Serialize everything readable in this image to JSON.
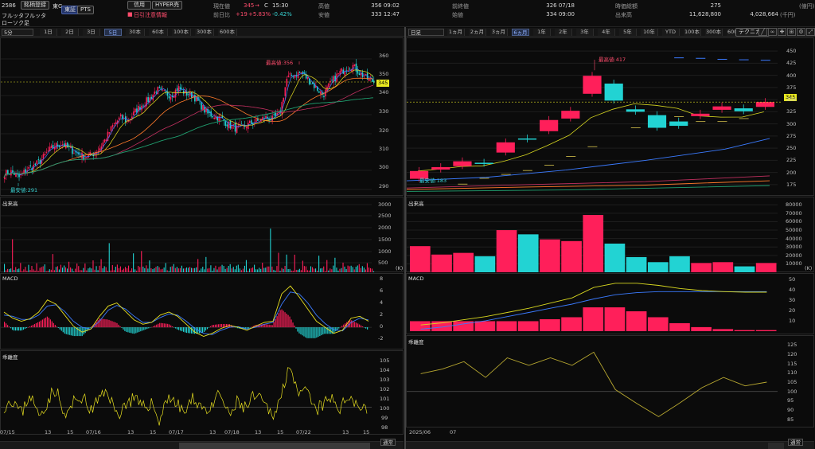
{
  "header": {
    "code": "2586",
    "name": "フルッタフルッタ",
    "btn_register": "銘柄登録",
    "market": "東G",
    "btn_tse": "東証",
    "btn_pts": "PTS",
    "btn_credit": "信用",
    "btn_hyper": "HYPER売",
    "warning": "日引注意情報",
    "current_label": "現在値",
    "current_value": "345",
    "current_arrow": "→",
    "current_mark": "C",
    "current_time": "15:30",
    "prev_label": "前日比",
    "prev_change": "+19",
    "prev_pct": "+5.83%",
    "prev_extra": "-0.42%",
    "high_label": "高値",
    "high_value": "356 09:02",
    "low_label": "安値",
    "low_value": "333 12:47",
    "prevclose_label": "前終値",
    "prevclose_value": "326 07/18",
    "open_label": "始値",
    "open_value": "334 09:00",
    "vwap_label": "時価総額",
    "vwap_value": "275",
    "vwap_unit": "(億円)",
    "volume_label": "出来高",
    "volume_value": "11,628,800",
    "turnover_value": "4,028,664",
    "turnover_unit": "(千円)"
  },
  "left": {
    "style_select": "ローソク足",
    "interval_select": "5分",
    "tabs": [
      "1日",
      "2日",
      "3日",
      "5日",
      "30本",
      "60本",
      "100本",
      "300本",
      "600本"
    ],
    "active_tab": "5日",
    "price_label": "345",
    "high_annot": "最高値:356",
    "low_annot": "最安値:291",
    "y_ticks": [
      "360",
      "350",
      "340",
      "330",
      "320",
      "310",
      "300",
      "290"
    ],
    "vol_label": "出来高",
    "vol_ticks": [
      "3000",
      "2500",
      "2000",
      "1500",
      "1000",
      "500"
    ],
    "vol_unit": "(K)",
    "macd_label": "MACD",
    "macd_ticks": [
      "8",
      "6",
      "4",
      "2",
      "0",
      "-2"
    ],
    "dev_label": "乖離度",
    "dev_ticks": [
      "105",
      "104",
      "103",
      "102",
      "101",
      "100",
      "99",
      "98"
    ],
    "x_ticks": [
      "07/15",
      "13",
      "15",
      "07/16",
      "13",
      "15",
      "07/17",
      "13",
      "07/18",
      "13",
      "15",
      "07/22",
      "13",
      "15"
    ],
    "bottom_select": "通常"
  },
  "right": {
    "interval_select": "日足",
    "tabs": [
      "1ヵ月",
      "2ヵ月",
      "3ヵ月",
      "6ヵ月",
      "1年",
      "2年",
      "3年",
      "4年",
      "5年",
      "10年",
      "YTD",
      "100本",
      "300本",
      "600本"
    ],
    "active_tab": "6ヵ月",
    "tech_button": "テクニカル",
    "price_label": "345",
    "high_annot": "最高値:417",
    "low_annot": "最安値:183",
    "y_ticks": [
      "450",
      "425",
      "400",
      "375",
      "350",
      "325",
      "300",
      "275",
      "250",
      "225",
      "200",
      "175"
    ],
    "vol_label": "出来高",
    "vol_ticks": [
      "80000",
      "70000",
      "60000",
      "50000",
      "40000",
      "30000",
      "20000",
      "10000"
    ],
    "vol_unit": "(K)",
    "macd_label": "MACD",
    "macd_ticks": [
      "50",
      "40",
      "30",
      "20",
      "10"
    ],
    "dev_label": "乖離度",
    "dev_ticks": [
      "125",
      "120",
      "115",
      "110",
      "105",
      "100",
      "95",
      "90",
      "85"
    ],
    "x_ticks": [
      "2025/06",
      "07"
    ],
    "bottom_select": "通常"
  },
  "colors": {
    "up": "#ff1f5a",
    "down": "#22d3d3",
    "bg": "#0b0b0b"
  },
  "chart_data": [
    {
      "type": "candlestick",
      "title": "5分",
      "ylim": [
        285,
        365
      ],
      "high": 356,
      "low": 291,
      "last": 345,
      "close_path": [
        296,
        297,
        294,
        298,
        300,
        303,
        308,
        311,
        312,
        309,
        307,
        305,
        306,
        309,
        315,
        322,
        326,
        324,
        329,
        333,
        336,
        341,
        339,
        338,
        342,
        339,
        338,
        333,
        328,
        327,
        325,
        322,
        320,
        321,
        323,
        324,
        326,
        325,
        328,
        347,
        349,
        350,
        346,
        342,
        338,
        344,
        349,
        352,
        354,
        350,
        347,
        345
      ]
    },
    {
      "type": "bar",
      "title": "出来高",
      "ylim": [
        0,
        3100
      ],
      "values": [
        600,
        1600,
        450,
        300,
        500,
        400,
        900,
        300,
        700,
        500,
        450,
        600,
        300,
        700,
        1200,
        400,
        300,
        800,
        1100,
        600,
        350,
        600,
        400,
        300,
        500,
        350,
        900,
        700,
        300,
        400,
        350,
        300,
        600,
        300,
        400,
        2000,
        800,
        500,
        900,
        1100,
        600,
        400,
        700,
        500,
        600,
        400,
        300,
        500,
        450,
        350
      ]
    },
    {
      "type": "line",
      "title": "MACD",
      "ylim": [
        -3,
        8
      ],
      "series": [
        {
          "name": "MACD",
          "values": [
            2.5,
            1.5,
            1.0,
            1.4,
            2.5,
            4.5,
            3.8,
            2.0,
            0.2,
            -0.8,
            -0.3,
            1.8,
            3.5,
            4.0,
            2.6,
            1.2,
            0.5,
            0.8,
            2.0,
            2.5,
            1.8,
            0.5,
            -0.8,
            -1.5,
            -1.0,
            -0.2,
            0.3,
            0.0,
            -0.5,
            0.2,
            0.8,
            1.0,
            5.5,
            6.8,
            5.0,
            3.0,
            1.0,
            0.0,
            -1.0,
            -0.5,
            1.5,
            1.8,
            1.0
          ]
        },
        {
          "name": "Signal",
          "values": [
            2.0,
            1.8,
            1.3,
            1.3,
            2.0,
            3.5,
            3.7,
            2.6,
            1.0,
            0.0,
            -0.3,
            1.0,
            2.8,
            3.6,
            3.0,
            1.8,
            0.8,
            0.8,
            1.6,
            2.2,
            2.0,
            1.0,
            -0.2,
            -1.0,
            -1.2,
            -0.5,
            0.0,
            0.1,
            -0.3,
            0.0,
            0.5,
            0.8,
            3.8,
            5.8,
            5.5,
            4.0,
            2.0,
            0.6,
            -0.4,
            -0.6,
            0.8,
            1.5,
            1.2
          ]
        }
      ]
    },
    {
      "type": "line",
      "title": "乖離度",
      "ylim": [
        97.5,
        105.5
      ],
      "series": [
        {
          "name": "乖離度",
          "values": [
            100.2,
            100.9,
            99.3,
            101.5,
            99.0,
            100.6,
            102.1,
            98.8,
            100.4,
            101.2,
            99.6,
            100.8,
            101.9,
            99.1,
            100.3,
            101.0,
            99.8,
            100.6,
            98.5,
            101.4,
            100.2,
            99.5,
            101.0,
            100.0,
            99.7,
            101.6,
            98.9,
            100.5,
            99.9,
            101.2,
            100.4,
            99.2,
            100.8,
            105.0,
            100.9,
            101.8,
            99.6,
            100.3,
            100.9,
            99.8,
            101.5,
            100.1,
            100.0
          ]
        }
      ]
    },
    {
      "type": "candlestick",
      "title": "日足",
      "ylim": [
        165,
        460
      ],
      "high": 417,
      "low": 183,
      "candles": [
        {
          "o": 187,
          "c": 203
        },
        {
          "o": 206,
          "c": 211
        },
        {
          "o": 213,
          "c": 223
        },
        {
          "o": 220,
          "c": 218
        },
        {
          "o": 241,
          "c": 262
        },
        {
          "o": 270,
          "c": 268
        },
        {
          "o": 285,
          "c": 308
        },
        {
          "o": 311,
          "c": 327
        },
        {
          "o": 362,
          "c": 399
        },
        {
          "o": 383,
          "c": 348
        },
        {
          "o": 330,
          "c": 325
        },
        {
          "o": 318,
          "c": 292
        },
        {
          "o": 305,
          "c": 296
        },
        {
          "o": 316,
          "c": 321
        },
        {
          "o": 329,
          "c": 336
        },
        {
          "o": 332,
          "c": 326
        },
        {
          "o": 335,
          "c": 345
        }
      ]
    },
    {
      "type": "bar",
      "title": "出来高",
      "ylim": [
        0,
        85000
      ],
      "values": [
        31000,
        21000,
        23000,
        19000,
        50000,
        45000,
        39000,
        37000,
        68000,
        34000,
        18000,
        12000,
        19000,
        11000,
        12000,
        7000,
        11000
      ]
    },
    {
      "type": "line",
      "title": "MACD",
      "ylim": [
        0,
        52
      ],
      "series": [
        {
          "name": "MACD",
          "values": [
            6,
            8,
            11,
            14,
            18,
            22,
            27,
            32,
            42,
            46,
            46,
            44,
            41,
            39,
            38,
            37.5,
            37.5
          ]
        },
        {
          "name": "Signal",
          "values": [
            2,
            4,
            7,
            10,
            14,
            18,
            22,
            26,
            31,
            35,
            37,
            38,
            38,
            38,
            38,
            38,
            38
          ]
        }
      ]
    },
    {
      "type": "line",
      "title": "乖離度",
      "ylim": [
        82,
        128
      ],
      "series": [
        {
          "name": "乖離度",
          "values": [
            109.5,
            112,
            116,
            107.5,
            118,
            114,
            118,
            114,
            121,
            101,
            93.5,
            86.5,
            94,
            102,
            107.5,
            103,
            105
          ]
        }
      ]
    }
  ]
}
